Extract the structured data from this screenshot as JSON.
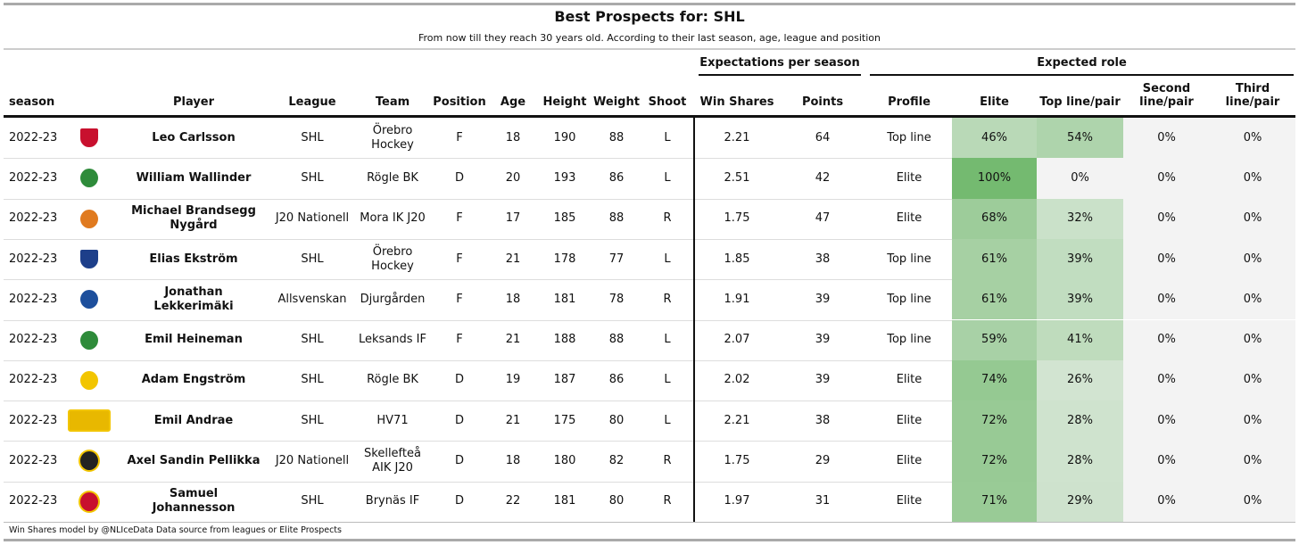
{
  "header": {
    "title": "Best Prospects for: SHL",
    "subtitle": "From now till they reach 30 years old. According to their last season, age, league and position"
  },
  "table": {
    "group_headers": [
      "Expectations per season",
      "Expected role"
    ],
    "columns": [
      "season",
      "Player",
      "League",
      "Team",
      "Position",
      "Age",
      "Height",
      "Weight",
      "Shoot",
      "Win Shares",
      "Points",
      "Profile",
      "Elite",
      "Top line/pair",
      "Second line/pair",
      "Third line/pair"
    ],
    "rows": [
      [
        "2022-23",
        "Leo Carlsson",
        "SHL",
        "Örebro Hockey",
        "F",
        18,
        190,
        88,
        "L",
        2.21,
        64,
        "Top line",
        "46%",
        "54%",
        "0%",
        "0%"
      ],
      [
        "2022-23",
        "William Wallinder",
        "SHL",
        "Rögle BK",
        "D",
        20,
        193,
        86,
        "L",
        2.51,
        42,
        "Elite",
        "100%",
        "0%",
        "0%",
        "0%"
      ],
      [
        "2022-23",
        "Michael Brandsegg Nygård",
        "J20 Nationell",
        "Mora IK J20",
        "F",
        17,
        185,
        88,
        "R",
        1.75,
        47,
        "Elite",
        "68%",
        "32%",
        "0%",
        "0%"
      ],
      [
        "2022-23",
        "Elias Ekström",
        "SHL",
        "Örebro Hockey",
        "F",
        21,
        178,
        77,
        "L",
        1.85,
        38,
        "Top line",
        "61%",
        "39%",
        "0%",
        "0%"
      ],
      [
        "2022-23",
        "Jonathan Lekkerimäki",
        "Allsvenskan",
        "Djurgården",
        "F",
        18,
        181,
        78,
        "R",
        1.91,
        39,
        "Top line",
        "61%",
        "39%",
        "0%",
        "0%"
      ],
      [
        "2022-23",
        "Emil Heineman",
        "SHL",
        "Leksands IF",
        "F",
        21,
        188,
        88,
        "L",
        2.07,
        39,
        "Top line",
        "59%",
        "41%",
        "0%",
        "0%"
      ],
      [
        "2022-23",
        "Adam Engström",
        "SHL",
        "Rögle BK",
        "D",
        19,
        187,
        86,
        "L",
        2.02,
        39,
        "Elite",
        "74%",
        "26%",
        "0%",
        "0%"
      ],
      [
        "2022-23",
        "Emil Andrae",
        "SHL",
        "HV71",
        "D",
        21,
        175,
        80,
        "L",
        2.21,
        38,
        "Elite",
        "72%",
        "28%",
        "0%",
        "0%"
      ],
      [
        "2022-23",
        "Axel Sandin Pellikka",
        "J20 Nationell",
        "Skellefteå AIK J20",
        "D",
        18,
        180,
        82,
        "R",
        1.75,
        29,
        "Elite",
        "72%",
        "28%",
        "0%",
        "0%"
      ],
      [
        "2022-23",
        "Samuel Johannesson",
        "SHL",
        "Brynäs IF",
        "D",
        22,
        181,
        80,
        "R",
        1.97,
        31,
        "Elite",
        "71%",
        "29%",
        "0%",
        "0%"
      ]
    ]
  },
  "footer": "Win Shares model by @NLIceData Data source from leagues or Elite Prospects"
}
